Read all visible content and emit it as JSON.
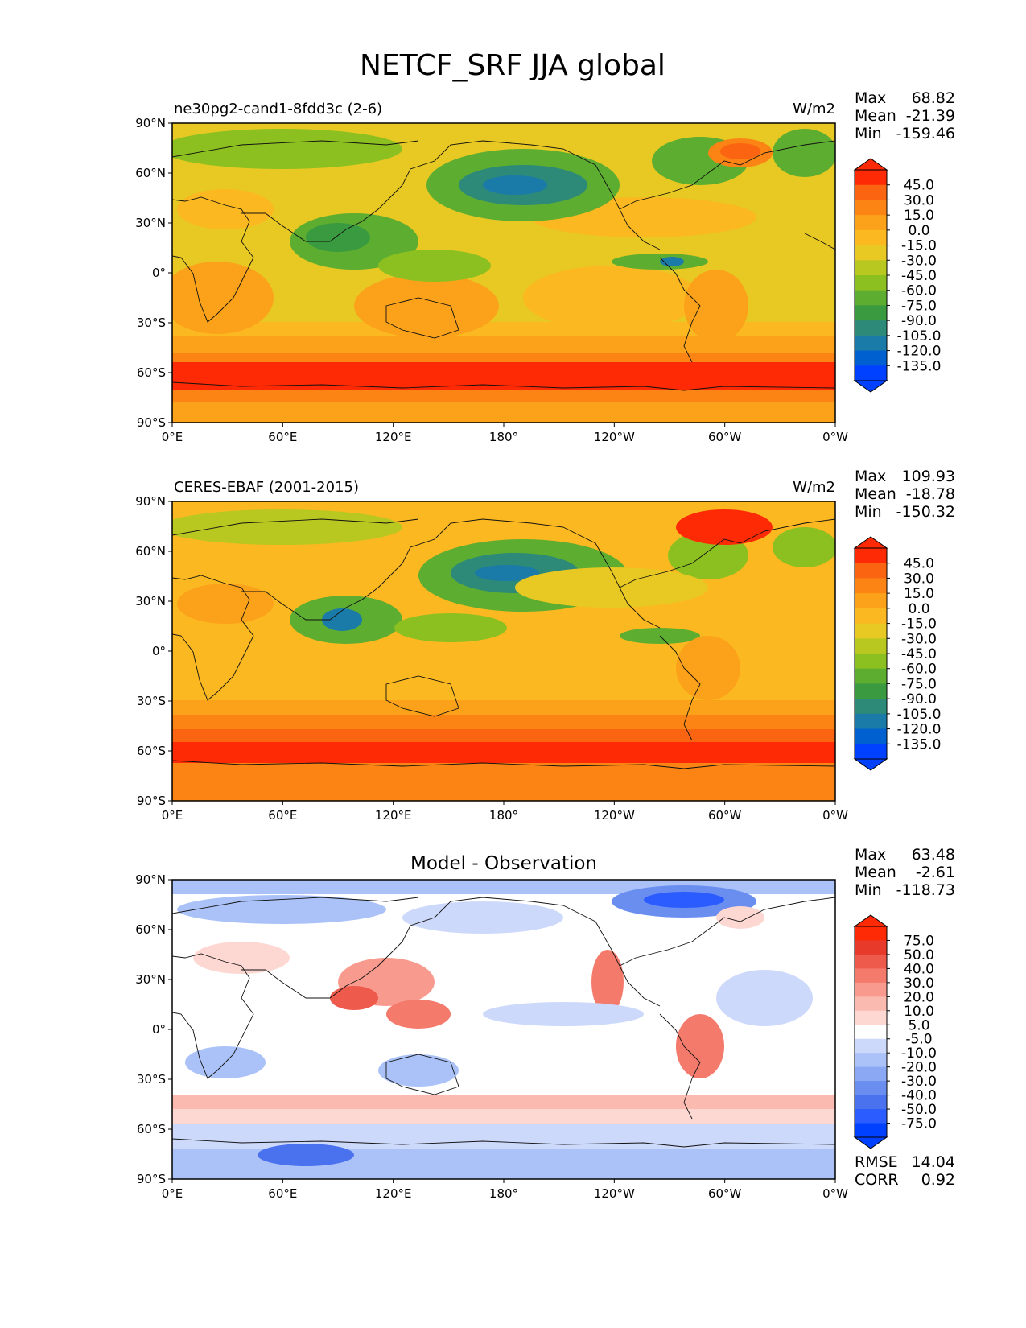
{
  "figure_title": "NETCF_SRF JJA global",
  "x_ticks": [
    "0°E",
    "60°E",
    "120°E",
    "180°",
    "120°W",
    "60°W",
    "0°W"
  ],
  "y_ticks": [
    "90°N",
    "60°N",
    "30°N",
    "0°",
    "30°S",
    "60°S",
    "90°S"
  ],
  "stat_labels": {
    "max": "Max",
    "mean": "Mean",
    "min": "Min",
    "rmse": "RMSE",
    "corr": "CORR"
  },
  "colors": {
    "sequential": [
      "#0040ff",
      "#0060d0",
      "#1a7aa8",
      "#2e8a78",
      "#3a9a40",
      "#5cad30",
      "#8cc020",
      "#b8c820",
      "#e8c823",
      "#fbb820",
      "#fba21a",
      "#fb8414",
      "#fb6410",
      "#fd2a05"
    ],
    "diverging": [
      "#0040ff",
      "#2a5cff",
      "#4a72ee",
      "#6a8ef0",
      "#8aa8f4",
      "#aac2f8",
      "#cdd9fb",
      "#ffffff",
      "#fdd8d3",
      "#fbbab0",
      "#f89a8e",
      "#f47a6c",
      "#ee5a4c",
      "#e83a2a",
      "#fd2a05"
    ]
  },
  "panels": [
    {
      "left_title": "ne30pg2-cand1-8fdd3c (2-6)",
      "center_title": "",
      "units": "W/m2",
      "max": "68.82",
      "mean": "-21.39",
      "min": "-159.46",
      "colorbar_labels": [
        "45.0",
        "30.0",
        "15.0",
        "0.0",
        "-15.0",
        "-30.0",
        "-45.0",
        "-60.0",
        "-75.0",
        "-90.0",
        "-105.0",
        "-120.0",
        "-135.0"
      ]
    },
    {
      "left_title": "CERES-EBAF (2001-2015)",
      "center_title": "",
      "units": "W/m2",
      "max": "109.93",
      "mean": "-18.78",
      "min": "-150.32",
      "colorbar_labels": [
        "45.0",
        "30.0",
        "15.0",
        "0.0",
        "-15.0",
        "-30.0",
        "-45.0",
        "-60.0",
        "-75.0",
        "-90.0",
        "-105.0",
        "-120.0",
        "-135.0"
      ]
    },
    {
      "left_title": "",
      "center_title": "Model - Observation",
      "units": "",
      "max": "63.48",
      "mean": "-2.61",
      "min": "-118.73",
      "rmse": "14.04",
      "corr": "0.92",
      "colorbar_labels": [
        "75.0",
        "50.0",
        "40.0",
        "30.0",
        "20.0",
        "10.0",
        "5.0",
        "-5.0",
        "-10.0",
        "-20.0",
        "-30.0",
        "-40.0",
        "-50.0",
        "-75.0"
      ]
    }
  ]
}
